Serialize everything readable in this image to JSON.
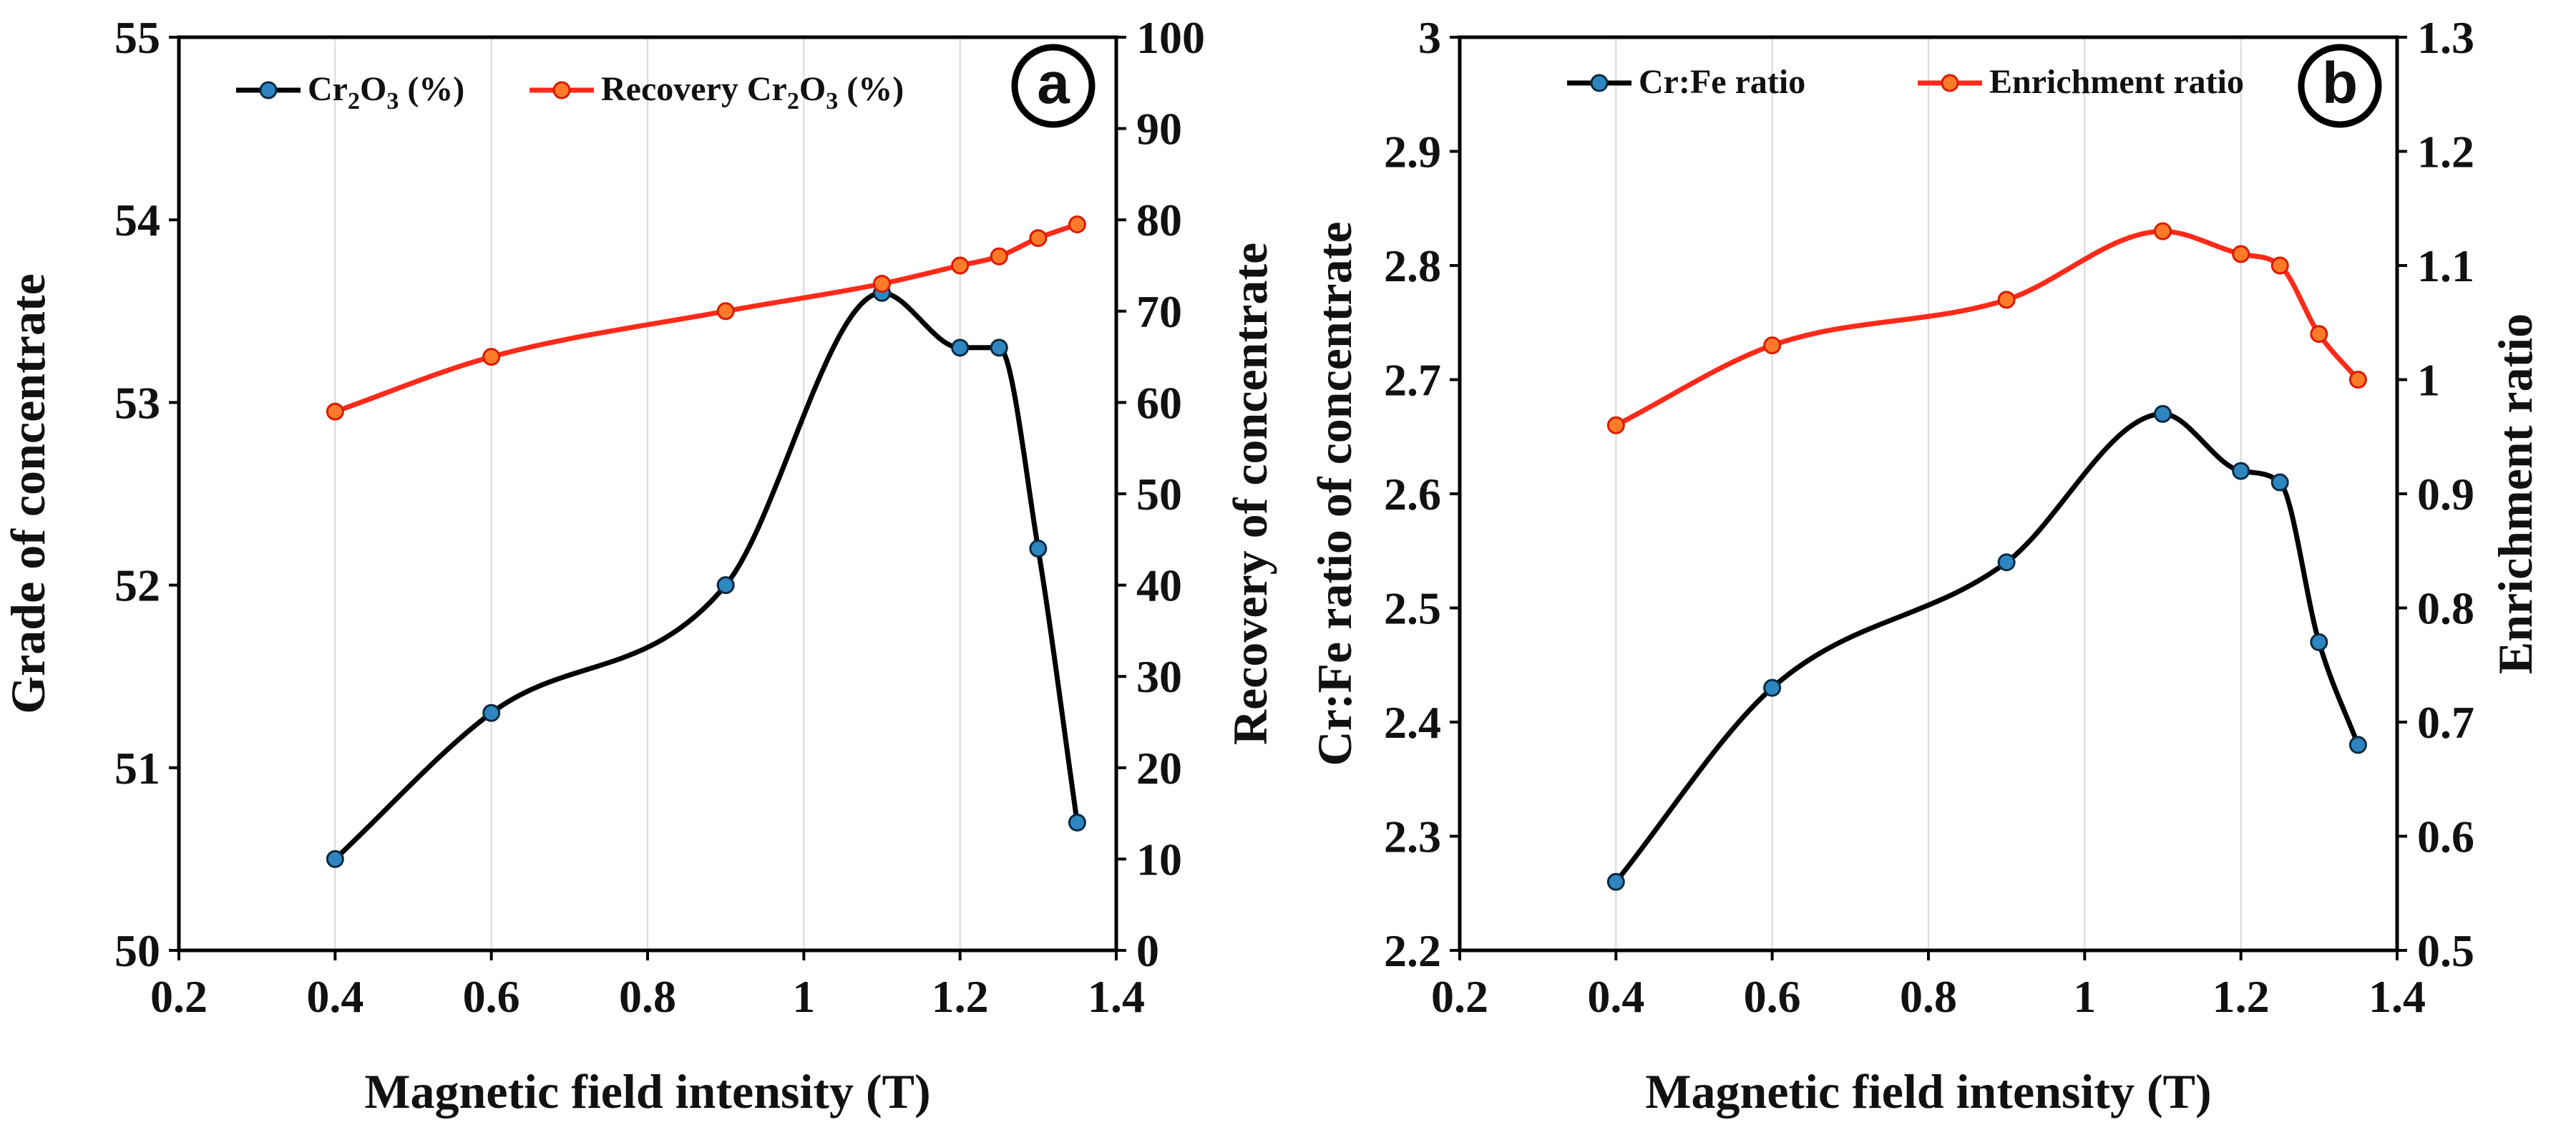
{
  "chart_data": [
    {
      "type": "line",
      "panel_label": "a",
      "xlabel": "Magnetic field intensity (T)",
      "ylabel": "Grade of concentrate",
      "ylabel_right": "Recovery of concentrate",
      "xlim": [
        0.2,
        1.4
      ],
      "xticks": [
        0.2,
        0.4,
        0.6,
        0.8,
        1,
        1.2,
        1.4
      ],
      "xtick_labels": [
        "0.2",
        "0.4",
        "0.6",
        "0.8",
        "1",
        "1.2",
        "1.4"
      ],
      "ylim": [
        50,
        55
      ],
      "yticks": [
        50,
        51,
        52,
        53,
        54,
        55
      ],
      "ytick_labels": [
        "50",
        "51",
        "52",
        "53",
        "54",
        "55"
      ],
      "ylim_right": [
        0,
        100
      ],
      "yticks_right": [
        0,
        10,
        20,
        30,
        40,
        50,
        60,
        70,
        80,
        90,
        100
      ],
      "ytick_labels_right": [
        "0",
        "10",
        "20",
        "30",
        "40",
        "50",
        "60",
        "70",
        "80",
        "90",
        "100"
      ],
      "grid": "vertical",
      "legend_position": "top",
      "series": [
        {
          "name": "Cr₂O₃ (%)",
          "axis": "left",
          "color": "#000000",
          "marker_color": "#2e86c1",
          "x": [
            0.4,
            0.6,
            0.9,
            1.1,
            1.2,
            1.25,
            1.3,
            1.35
          ],
          "values": [
            50.5,
            51.3,
            52.0,
            53.6,
            53.3,
            53.3,
            52.2,
            50.7
          ]
        },
        {
          "name": "Recovery  Cr₂O₃ (%)",
          "axis": "right",
          "color": "#ff2a1a",
          "marker_color": "#ff7a29",
          "x": [
            0.4,
            0.6,
            0.9,
            1.1,
            1.2,
            1.25,
            1.3,
            1.35
          ],
          "values": [
            59,
            65,
            70,
            73,
            75,
            76,
            78,
            79.5
          ]
        }
      ]
    },
    {
      "type": "line",
      "panel_label": "b",
      "xlabel": "Magnetic field intensity (T)",
      "ylabel": "Cr:Fe ratio of concentrate",
      "ylabel_right": "Enrichment ratio",
      "xlim": [
        0.2,
        1.4
      ],
      "xticks": [
        0.2,
        0.4,
        0.6,
        0.8,
        1,
        1.2,
        1.4
      ],
      "xtick_labels": [
        "0.2",
        "0.4",
        "0.6",
        "0.8",
        "1",
        "1.2",
        "1.4"
      ],
      "ylim": [
        2.2,
        3.0
      ],
      "yticks": [
        2.2,
        2.3,
        2.4,
        2.5,
        2.6,
        2.7,
        2.8,
        2.9,
        3.0
      ],
      "ytick_labels": [
        "2.2",
        "2.3",
        "2.4",
        "2.5",
        "2.6",
        "2.7",
        "2.8",
        "2.9",
        "3"
      ],
      "ylim_right": [
        0.5,
        1.3
      ],
      "yticks_right": [
        0.5,
        0.6,
        0.7,
        0.8,
        0.9,
        1.0,
        1.1,
        1.2,
        1.3
      ],
      "ytick_labels_right": [
        "0.5",
        "0.6",
        "0.7",
        "0.8",
        "0.9",
        "1",
        "1.1",
        "1.2",
        "1.3"
      ],
      "grid": "vertical",
      "legend_position": "top",
      "series": [
        {
          "name": "Cr:Fe ratio",
          "axis": "left",
          "color": "#000000",
          "marker_color": "#2e86c1",
          "x": [
            0.4,
            0.6,
            0.9,
            1.1,
            1.2,
            1.25,
            1.3,
            1.35
          ],
          "values": [
            2.26,
            2.43,
            2.54,
            2.67,
            2.62,
            2.61,
            2.47,
            2.38
          ]
        },
        {
          "name": "Enrichment ratio",
          "axis": "right",
          "color": "#ff2a1a",
          "marker_color": "#ff7a29",
          "x": [
            0.4,
            0.6,
            0.9,
            1.1,
            1.2,
            1.25,
            1.3,
            1.35
          ],
          "values": [
            0.96,
            1.03,
            1.07,
            1.13,
            1.11,
            1.1,
            1.04,
            1.0
          ]
        }
      ]
    }
  ]
}
